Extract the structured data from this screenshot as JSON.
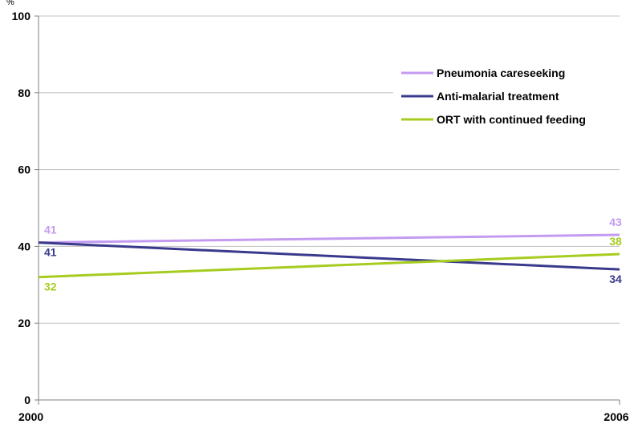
{
  "chart_data": {
    "type": "line",
    "y_unit": "%",
    "x": [
      "2000",
      "2006"
    ],
    "series": [
      {
        "name": "Pneumonia careseeking",
        "color": "#c39bf0",
        "values": [
          41,
          43
        ]
      },
      {
        "name": "Anti-malarial treatment",
        "color": "#3a3a8c",
        "values": [
          41,
          34
        ]
      },
      {
        "name": "ORT with continued feeding",
        "color": "#a6cc1f",
        "values": [
          32,
          38
        ]
      }
    ],
    "ylim": [
      0,
      100
    ],
    "yticks": [
      "0",
      "20",
      "40",
      "60",
      "80",
      "100"
    ],
    "grid": true,
    "legend_position": "top-right"
  }
}
